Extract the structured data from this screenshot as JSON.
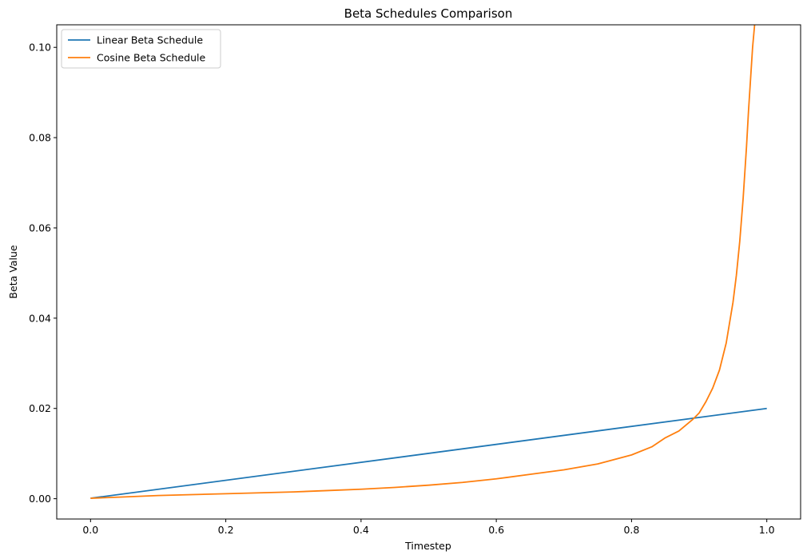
{
  "chart_data": {
    "type": "line",
    "title": "Beta Schedules Comparison",
    "xlabel": "Timestep",
    "ylabel": "Beta Value",
    "xlim": [
      -0.05,
      1.05
    ],
    "ylim": [
      -0.0045,
      0.105
    ],
    "xticks": [
      0.0,
      0.2,
      0.4,
      0.6,
      0.8,
      1.0
    ],
    "xtick_labels": [
      "0.0",
      "0.2",
      "0.4",
      "0.6",
      "0.8",
      "1.0"
    ],
    "yticks": [
      0.0,
      0.02,
      0.04,
      0.06,
      0.08,
      0.1
    ],
    "ytick_labels": [
      "0.00",
      "0.02",
      "0.04",
      "0.06",
      "0.08",
      "0.10"
    ],
    "grid": false,
    "legend_position": "top-left",
    "series": [
      {
        "name": "Linear Beta Schedule",
        "color": "#1f77b4",
        "x": [
          0.0,
          1.0
        ],
        "y": [
          0.0001,
          0.02
        ]
      },
      {
        "name": "Cosine Beta Schedule",
        "color": "#ff7f0e",
        "x": [
          0.0,
          0.05,
          0.1,
          0.15,
          0.2,
          0.25,
          0.3,
          0.35,
          0.4,
          0.45,
          0.5,
          0.55,
          0.6,
          0.65,
          0.7,
          0.75,
          0.8,
          0.83,
          0.85,
          0.87,
          0.89,
          0.9,
          0.91,
          0.92,
          0.93,
          0.94,
          0.95,
          0.955,
          0.96,
          0.965,
          0.97,
          0.973,
          0.976,
          0.979,
          0.982
        ],
        "y": [
          0.0001,
          0.0004,
          0.0007,
          0.0009,
          0.0011,
          0.0013,
          0.0015,
          0.0018,
          0.0021,
          0.0025,
          0.003,
          0.0036,
          0.0044,
          0.0054,
          0.0064,
          0.0077,
          0.0097,
          0.0115,
          0.0135,
          0.015,
          0.0175,
          0.019,
          0.0215,
          0.0245,
          0.0285,
          0.0345,
          0.0435,
          0.0495,
          0.057,
          0.0665,
          0.078,
          0.086,
          0.093,
          0.1,
          0.105
        ]
      }
    ]
  }
}
